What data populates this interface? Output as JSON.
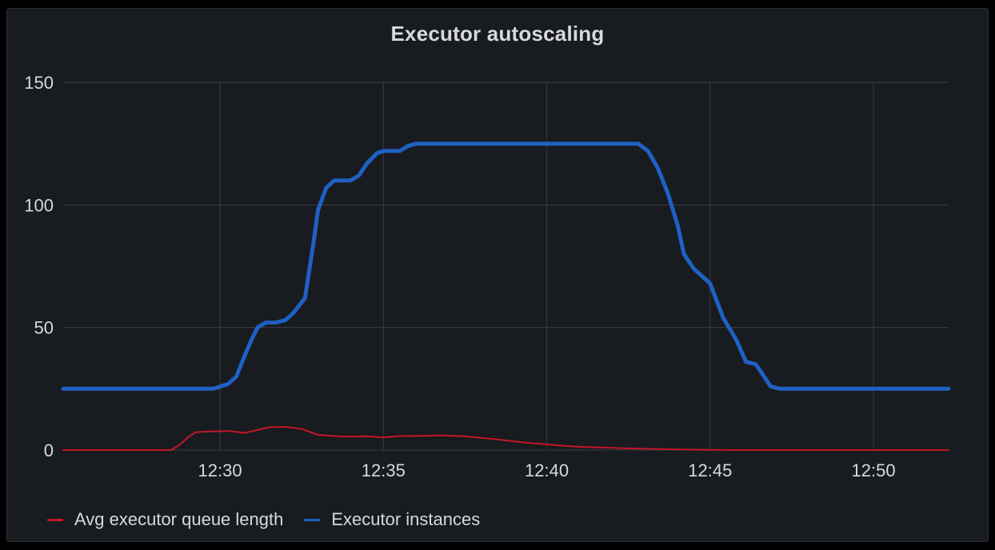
{
  "panel": {
    "title": "Executor autoscaling"
  },
  "colors": {
    "background": "#181b1f",
    "grid": "#3a3d42",
    "text": "#d8d9da",
    "queue": "#c4162a",
    "instances": "#1f60c4"
  },
  "chart_data": {
    "type": "line",
    "title": "Executor autoscaling",
    "xlabel": "",
    "ylabel": "",
    "x_unit": "minutes",
    "xlim": [
      "12:25:12",
      "12:52:18"
    ],
    "ylim": [
      0,
      150
    ],
    "y_ticks": [
      "0",
      "50",
      "100",
      "150"
    ],
    "x_ticks": [
      "12:30",
      "12:35",
      "12:40",
      "12:45",
      "12:50"
    ],
    "grid": true,
    "legend_position": "bottom-left",
    "series": [
      {
        "name": "Avg executor queue length",
        "color": "#c4162a",
        "points": [
          [
            "12:25:12",
            0
          ],
          [
            "12:28:30",
            0
          ],
          [
            "12:28:45",
            2
          ],
          [
            "12:29:00",
            5
          ],
          [
            "12:29:15",
            7.3
          ],
          [
            "12:29:45",
            7.6
          ],
          [
            "12:30:15",
            7.8
          ],
          [
            "12:30:45",
            7
          ],
          [
            "12:31:15",
            8.5
          ],
          [
            "12:31:30",
            9.3
          ],
          [
            "12:32:00",
            9.5
          ],
          [
            "12:32:30",
            8.6
          ],
          [
            "12:33:00",
            6.2
          ],
          [
            "12:33:45",
            5.5
          ],
          [
            "12:34:30",
            5.6
          ],
          [
            "12:35:00",
            5.2
          ],
          [
            "12:35:30",
            5.7
          ],
          [
            "12:36:15",
            5.8
          ],
          [
            "12:36:45",
            6
          ],
          [
            "12:37:30",
            5.6
          ],
          [
            "12:38:30",
            4.3
          ],
          [
            "12:39:15",
            3.2
          ],
          [
            "12:40:00",
            2.3
          ],
          [
            "12:40:45",
            1.5
          ],
          [
            "12:41:30",
            1.1
          ],
          [
            "12:42:30",
            0.7
          ],
          [
            "12:43:30",
            0.4
          ],
          [
            "12:44:15",
            0.2
          ],
          [
            "12:45:00",
            0.1
          ],
          [
            "12:46:00",
            0
          ],
          [
            "12:52:18",
            0
          ]
        ]
      },
      {
        "name": "Executor instances",
        "color": "#1f60c4",
        "points": [
          [
            "12:25:12",
            25
          ],
          [
            "12:29:48",
            25
          ],
          [
            "12:30:15",
            27
          ],
          [
            "12:30:30",
            30
          ],
          [
            "12:30:48",
            40
          ],
          [
            "12:31:00",
            46
          ],
          [
            "12:31:09",
            50
          ],
          [
            "12:31:24",
            52
          ],
          [
            "12:31:42",
            52
          ],
          [
            "12:32:00",
            53
          ],
          [
            "12:32:15",
            56
          ],
          [
            "12:32:36",
            62
          ],
          [
            "12:32:52",
            85
          ],
          [
            "12:33:00",
            98
          ],
          [
            "12:33:15",
            107
          ],
          [
            "12:33:30",
            110
          ],
          [
            "12:34:00",
            110
          ],
          [
            "12:34:15",
            112
          ],
          [
            "12:34:30",
            117
          ],
          [
            "12:34:48",
            121
          ],
          [
            "12:35:00",
            122
          ],
          [
            "12:35:15",
            122
          ],
          [
            "12:35:30",
            122
          ],
          [
            "12:35:45",
            124
          ],
          [
            "12:36:00",
            125
          ],
          [
            "12:42:48",
            125
          ],
          [
            "12:43:06",
            122
          ],
          [
            "12:43:24",
            115
          ],
          [
            "12:43:42",
            105
          ],
          [
            "12:44:00",
            92
          ],
          [
            "12:44:12",
            80
          ],
          [
            "12:44:30",
            74
          ],
          [
            "12:45:00",
            68
          ],
          [
            "12:45:24",
            54
          ],
          [
            "12:45:48",
            45
          ],
          [
            "12:46:06",
            36
          ],
          [
            "12:46:24",
            35
          ],
          [
            "12:46:36",
            31
          ],
          [
            "12:46:51",
            26
          ],
          [
            "12:47:09",
            25
          ],
          [
            "12:52:18",
            25
          ]
        ]
      }
    ]
  }
}
